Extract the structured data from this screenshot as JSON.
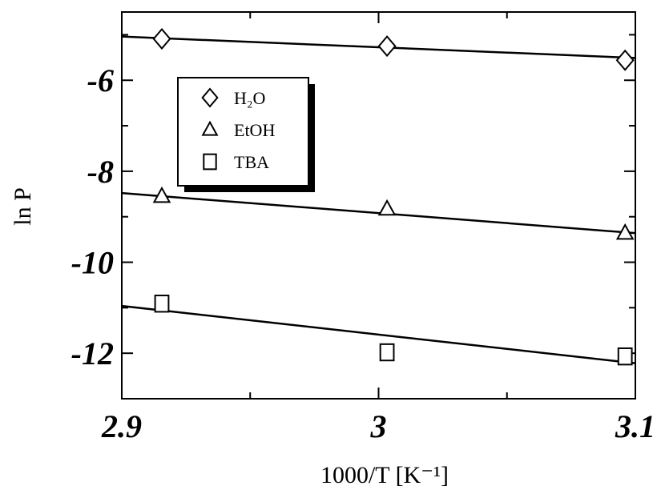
{
  "chart_data": {
    "type": "scatter",
    "xlabel": "1000/T [K⁻¹]",
    "ylabel": "ln P",
    "xlim": [
      2.9,
      3.1
    ],
    "ylim": [
      -13,
      -4.5
    ],
    "xticks": [
      2.9,
      3,
      3.1
    ],
    "yticks": [
      -6,
      -8,
      -10,
      -12
    ],
    "xticks_minor": [
      2.95,
      3.05
    ],
    "yticks_minor": [
      -5,
      -7,
      -9,
      -11
    ],
    "series": [
      {
        "name": "H₂O",
        "marker": "diamond",
        "color": "#000000",
        "x": [
          2.9156,
          3.0033,
          3.096
        ],
        "values": [
          -5.09,
          -5.25,
          -5.56
        ],
        "fit_values": [
          -5.04,
          -5.51
        ]
      },
      {
        "name": "EtOH",
        "marker": "triangle",
        "color": "#000000",
        "x": [
          2.9156,
          3.0033,
          3.096
        ],
        "values": [
          -8.55,
          -8.83,
          -9.36
        ],
        "fit_values": [
          -8.48,
          -9.36
        ]
      },
      {
        "name": "TBA",
        "marker": "square",
        "color": "#000000",
        "x": [
          2.9156,
          3.0033,
          3.096
        ],
        "values": [
          -10.91,
          -11.98,
          -12.07
        ],
        "fit_values": [
          -10.96,
          -12.22
        ]
      }
    ]
  }
}
